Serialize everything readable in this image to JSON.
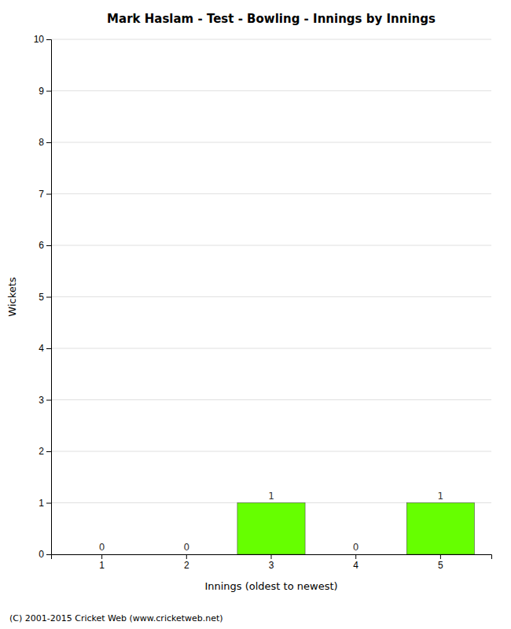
{
  "chart_data": {
    "type": "bar",
    "title": "Mark Haslam - Test - Bowling - Innings by Innings",
    "x_label": "Innings (oldest to newest)",
    "y_label": "Wickets",
    "categories": [
      1,
      2,
      3,
      4,
      5
    ],
    "values": [
      0,
      0,
      1,
      0,
      1
    ],
    "color": "#66ff00",
    "ylim": [
      0,
      10
    ],
    "yticks": [
      0,
      1,
      2,
      3,
      4,
      5,
      6,
      7,
      8,
      9,
      10
    ],
    "grid": true,
    "data_labels": true,
    "annotations": [
      "(C) 2001-2015 Cricket Web (www.cricketweb.net)"
    ]
  }
}
